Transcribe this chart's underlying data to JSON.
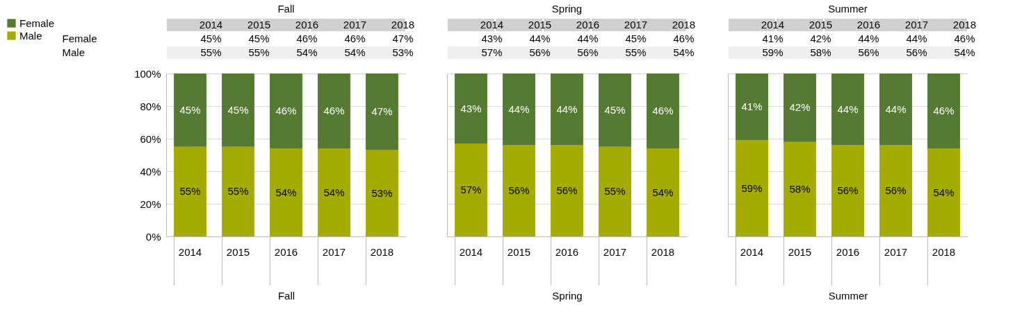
{
  "chart_data": [
    {
      "type": "bar",
      "title": "Fall",
      "xlabel": "Fall",
      "categories": [
        "2014",
        "2015",
        "2016",
        "2017",
        "2018"
      ],
      "stacked": true,
      "ylim": [
        0,
        100
      ],
      "yticks": [
        {
          "value": 0,
          "label": "0%"
        },
        {
          "value": 20,
          "label": "20%"
        },
        {
          "value": 40,
          "label": "40%"
        },
        {
          "value": 60,
          "label": "60%"
        },
        {
          "value": 80,
          "label": "80%"
        },
        {
          "value": 100,
          "label": "100%"
        }
      ],
      "grid": "y",
      "legend": "left",
      "series": [
        {
          "name": "Male",
          "color": "#a5ac00",
          "values": [
            55,
            55,
            54,
            54,
            53
          ],
          "value_labels": [
            "55%",
            "55%",
            "54%",
            "54%",
            "53%"
          ]
        },
        {
          "name": "Female",
          "color": "#557a31",
          "values": [
            45,
            45,
            46,
            46,
            47
          ],
          "value_labels": [
            "45%",
            "45%",
            "46%",
            "46%",
            "47%"
          ]
        }
      ]
    },
    {
      "type": "bar",
      "title": "Spring",
      "xlabel": "Spring",
      "categories": [
        "2014",
        "2015",
        "2016",
        "2017",
        "2018"
      ],
      "stacked": true,
      "ylim": [
        0,
        100
      ],
      "yticks": [
        {
          "value": 0,
          "label": null
        },
        {
          "value": 20,
          "label": null
        },
        {
          "value": 40,
          "label": null
        },
        {
          "value": 60,
          "label": null
        },
        {
          "value": 80,
          "label": null
        },
        {
          "value": 100,
          "label": null
        }
      ],
      "grid": "y",
      "tick_labels": "x",
      "series": [
        {
          "color": "#a5ac00",
          "values": [
            57,
            56,
            56,
            55,
            54
          ],
          "value_labels": [
            "57%",
            "56%",
            "56%",
            "55%",
            "54%"
          ]
        },
        {
          "color": "#557a31",
          "values": [
            43,
            44,
            44,
            45,
            46
          ],
          "value_labels": [
            "43%",
            "44%",
            "44%",
            "45%",
            "46%"
          ]
        }
      ]
    },
    {
      "type": "bar",
      "title": "Summer",
      "xlabel": "Summer",
      "categories": [
        "2014",
        "2015",
        "2016",
        "2017",
        "2018"
      ],
      "stacked": true,
      "ylim": [
        0,
        100
      ],
      "yticks": [
        {
          "value": 0,
          "label": null
        },
        {
          "value": 20,
          "label": null
        },
        {
          "value": 40,
          "label": null
        },
        {
          "value": 60,
          "label": null
        },
        {
          "value": 80,
          "label": null
        },
        {
          "value": 100,
          "label": null
        }
      ],
      "grid": "y",
      "tick_labels": "x",
      "series": [
        {
          "color": "#a5ac00",
          "values": [
            59,
            58,
            56,
            56,
            54
          ],
          "value_labels": [
            "59%",
            "58%",
            "56%",
            "56%",
            "54%"
          ]
        },
        {
          "color": "#557a31",
          "values": [
            41,
            42,
            44,
            44,
            46
          ],
          "value_labels": [
            "41%",
            "42%",
            "44%",
            "44%",
            "46%"
          ]
        }
      ]
    }
  ]
}
